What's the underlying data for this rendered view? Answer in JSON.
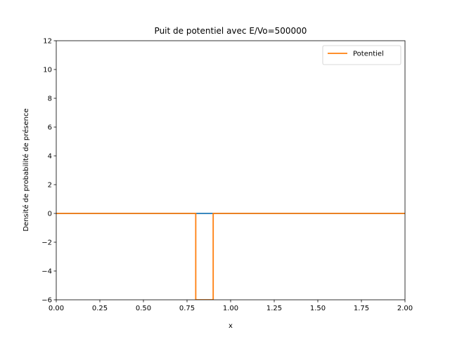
{
  "chart_data": {
    "type": "line",
    "title": "Puit de potentiel avec E/Vo=500000",
    "xlabel": "x",
    "ylabel": "Densité de probabilité de présence",
    "xlim": [
      0,
      2
    ],
    "ylim": [
      -6,
      12
    ],
    "xticks": [
      0,
      0.25,
      0.5,
      0.75,
      1,
      1.25,
      1.5,
      1.75,
      2
    ],
    "xtick_labels": [
      "0.00",
      "0.25",
      "0.50",
      "0.75",
      "1.00",
      "1.25",
      "1.50",
      "1.75",
      "2.00"
    ],
    "yticks": [
      -6,
      -4,
      -2,
      0,
      2,
      4,
      6,
      8,
      10,
      12
    ],
    "ytick_labels": [
      "−6",
      "−4",
      "−2",
      "0",
      "2",
      "4",
      "6",
      "8",
      "10",
      "12"
    ],
    "grid": false,
    "legend_position": "top-right",
    "series": [
      {
        "key": "density",
        "color": "#1f77b4",
        "x": [
          0,
          0.8,
          0.9,
          2
        ],
        "y": [
          0,
          0,
          0,
          0
        ]
      },
      {
        "key": "potential",
        "name": "Potentiel",
        "color": "#ff7f0e",
        "x": [
          0,
          0.8,
          0.8,
          0.9,
          0.9,
          2
        ],
        "y": [
          0,
          0,
          -6,
          -6,
          0,
          0
        ]
      }
    ]
  }
}
